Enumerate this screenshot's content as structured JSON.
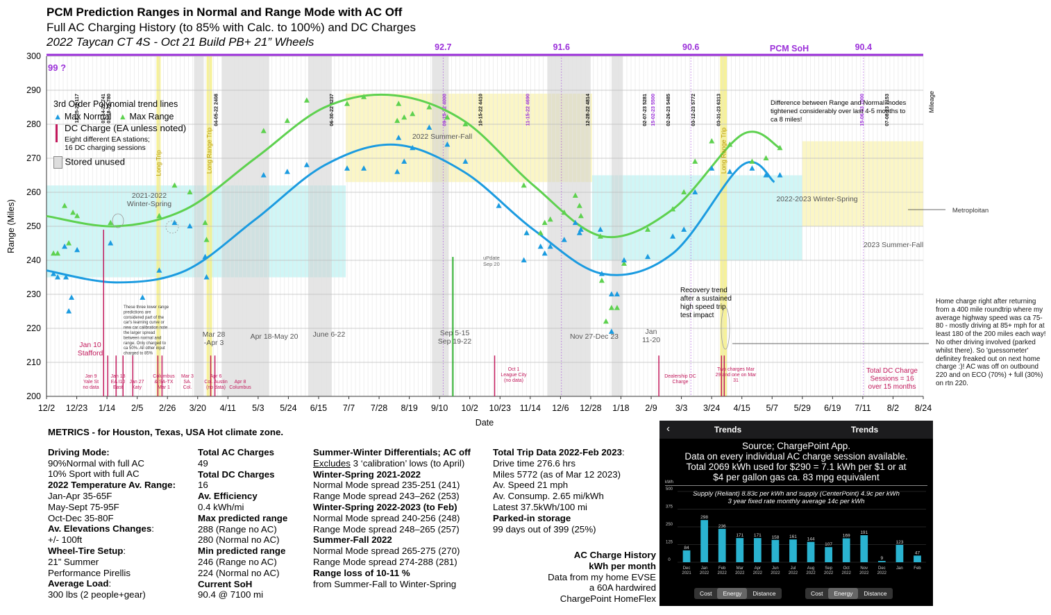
{
  "header": {
    "title": "PCM Prediction Ranges in Normal and Range Mode with AC Off",
    "subtitle": "Full AC Charging History (to 85% with Calc. to 100%) and DC Charges",
    "subtitle2": "2022 Taycan CT 4S - Oct 21 Build PB+ 21” Wheels"
  },
  "chart_data": {
    "type": "scatter",
    "xlabel": "Date",
    "ylabel": "Range (Miles)",
    "ylim": [
      200,
      300
    ],
    "x_ticks": [
      "12/2",
      "12/23",
      "1/14",
      "2/5",
      "2/26",
      "3/20",
      "4/11",
      "5/3",
      "5/24",
      "6/15",
      "7/7",
      "7/28",
      "8/19",
      "9/10",
      "10/2",
      "10/23",
      "11/14",
      "12/6",
      "12/28",
      "1/18",
      "2/9",
      "3/3",
      "3/24",
      "4/15",
      "5/7",
      "5/29",
      "6/19",
      "7/11",
      "8/2",
      "8/24"
    ],
    "y_ticks": [
      200,
      210,
      220,
      230,
      240,
      250,
      260,
      270,
      280,
      290,
      300
    ],
    "legend": {
      "heading": "3rd Order Polynomial trend lines",
      "normal": "Max Normal",
      "range": "Max Range",
      "dc": "DC Charge (EA unless noted)",
      "dc_note1": "Eight different EA stations;",
      "dc_note2": "16 DC charging sessions",
      "stored": "Stored unused"
    },
    "colors": {
      "normal": "#1b9be0",
      "range": "#5ed14f",
      "dc": "#c2185b",
      "soh": "#9b30d9"
    },
    "series": [
      {
        "name": "Max Normal",
        "points": [
          [
            5,
            236
          ],
          [
            8,
            235
          ],
          [
            13,
            244
          ],
          [
            14,
            235
          ],
          [
            16,
            225
          ],
          [
            18,
            229
          ],
          [
            22,
            243
          ],
          [
            46,
            245
          ],
          [
            69,
            229
          ],
          [
            81,
            237
          ],
          [
            92,
            251
          ],
          [
            103,
            250
          ],
          [
            114,
            241
          ],
          [
            115,
            235
          ],
          [
            156,
            265
          ],
          [
            173,
            266
          ],
          [
            187,
            268
          ],
          [
            216,
            267
          ],
          [
            228,
            267
          ],
          [
            252,
            266
          ],
          [
            257,
            269
          ],
          [
            253,
            276
          ],
          [
            263,
            273
          ],
          [
            275,
            279
          ],
          [
            288,
            274
          ],
          [
            301,
            269
          ],
          [
            325,
            256
          ],
          [
            343,
            240
          ],
          [
            345,
            248
          ],
          [
            355,
            244
          ],
          [
            362,
            244
          ],
          [
            358,
            242
          ],
          [
            372,
            246
          ],
          [
            380,
            251
          ],
          [
            383,
            248
          ],
          [
            384,
            249
          ],
          [
            398,
            249
          ],
          [
            399,
            236
          ],
          [
            406,
            230
          ],
          [
            406,
            219
          ],
          [
            410,
            230
          ],
          [
            415,
            240
          ],
          [
            432,
            241
          ],
          [
            450,
            247
          ],
          [
            458,
            249
          ],
          [
            466,
            260
          ],
          [
            478,
            267
          ],
          [
            491,
            266
          ],
          [
            507,
            267
          ],
          [
            517,
            265
          ],
          [
            527,
            265
          ]
        ]
      },
      {
        "name": "Max Range",
        "points": [
          [
            5,
            242
          ],
          [
            8,
            242
          ],
          [
            13,
            256
          ],
          [
            16,
            245
          ],
          [
            19,
            254
          ],
          [
            22,
            253
          ],
          [
            46,
            251
          ],
          [
            81,
            253
          ],
          [
            92,
            262
          ],
          [
            103,
            260
          ],
          [
            114,
            251
          ],
          [
            115,
            246
          ],
          [
            156,
            278
          ],
          [
            173,
            281
          ],
          [
            187,
            287
          ],
          [
            216,
            286
          ],
          [
            228,
            288
          ],
          [
            252,
            281
          ],
          [
            257,
            282
          ],
          [
            253,
            286
          ],
          [
            263,
            283
          ],
          [
            275,
            285
          ],
          [
            288,
            282
          ],
          [
            301,
            280
          ],
          [
            343,
            262
          ],
          [
            345,
            248
          ],
          [
            355,
            248
          ],
          [
            362,
            252
          ],
          [
            358,
            251
          ],
          [
            372,
            254
          ],
          [
            380,
            259
          ],
          [
            383,
            256
          ],
          [
            384,
            253
          ],
          [
            398,
            247
          ],
          [
            399,
            234
          ],
          [
            402,
            222
          ],
          [
            406,
            226
          ],
          [
            410,
            226
          ],
          [
            415,
            239
          ],
          [
            432,
            249
          ],
          [
            450,
            255
          ],
          [
            458,
            260
          ],
          [
            466,
            269
          ],
          [
            478,
            275
          ],
          [
            491,
            274
          ],
          [
            507,
            269
          ],
          [
            517,
            270
          ],
          [
            527,
            273
          ]
        ]
      }
    ],
    "normal_trend": [
      [
        0,
        237
      ],
      [
        50,
        233.5
      ],
      [
        100,
        237
      ],
      [
        150,
        252
      ],
      [
        200,
        268
      ],
      [
        250,
        274
      ],
      [
        300,
        266
      ],
      [
        350,
        249
      ],
      [
        400,
        236
      ],
      [
        450,
        242
      ],
      [
        500,
        268
      ],
      [
        523,
        263
      ]
    ],
    "range_trend": [
      [
        0,
        253
      ],
      [
        50,
        250
      ],
      [
        100,
        255
      ],
      [
        150,
        270
      ],
      [
        200,
        285
      ],
      [
        250,
        288.5
      ],
      [
        300,
        281
      ],
      [
        350,
        262
      ],
      [
        400,
        247
      ],
      [
        450,
        255
      ],
      [
        500,
        277
      ],
      [
        527,
        273
      ]
    ],
    "soh": {
      "label": "PCM SoH",
      "first": "99 ?",
      "values": [
        {
          "day": 285,
          "value": "92.7"
        },
        {
          "day": 370,
          "value": "91.6"
        },
        {
          "day": 463,
          "value": "90.6"
        },
        {
          "day": 587,
          "value": "90.4"
        }
      ]
    },
    "mileage_label": "Mileage",
    "mileage_marks": [
      {
        "day": 23,
        "label": "12-25-22 117"
      },
      {
        "day": 42,
        "label": "01-14-22 741"
      },
      {
        "day": 46,
        "label": "01-18-22 780"
      },
      {
        "day": 123,
        "label": "04-05-22 2408"
      },
      {
        "day": 206,
        "label": "06-30-22 3237"
      },
      {
        "day": 287,
        "label": "09-15-22 4000"
      },
      {
        "day": 313,
        "label": "10-15-22 4410"
      },
      {
        "day": 347,
        "label": "11-15-22 4690"
      },
      {
        "day": 390,
        "label": "12-28-22 4814"
      },
      {
        "day": 431,
        "label": "02-07-23 5281"
      },
      {
        "day": 437,
        "label": "15-02-23 5500"
      },
      {
        "day": 448,
        "label": "02-26-23 5485"
      },
      {
        "day": 466,
        "label": "03-12-23 5772"
      },
      {
        "day": 484,
        "label": "03-31-23 6313"
      },
      {
        "day": 587,
        "label": "15-06-23 7000"
      },
      {
        "day": 605,
        "label": "07-08-23 7153"
      }
    ],
    "region_labels": [
      {
        "text": "2021-2022\nWinter-Spring"
      },
      {
        "text": "2022 Summer-Fall"
      },
      {
        "text": "2022-2023 Winter-Spring"
      },
      {
        "text": "2023 Summer-Fall"
      }
    ],
    "trip_labels": [
      "Long Trip",
      "Long Range Trip",
      "Long Range Trip"
    ],
    "stored_periods": [
      "Mar 28\n-Apr 3",
      "Apr 18-May 20",
      "June 6-22",
      "Sep 5-15\nSep 19-22",
      "Nov 27-Dec 23",
      "Jan\n11-20"
    ],
    "update_label": "uPdate\nSep 20",
    "dc_labels": [
      "Jan 10\nStafford",
      "Jan 9\nYale St\nno data",
      "Jan 13\nEA I10\nEast",
      "Jan 27\nKaty",
      "Columbus\n& SA-TX\nMar 1",
      "Mar 3\nSA.\nCol.",
      "Apr 6\nCol. Austin\n(no data)",
      "Apr 8\nColumbus",
      "Oct 1\nLeague City\n(no data)",
      "Dealership DC\nCharge",
      "Two charges Mar\n29 and one on Mar\n31",
      "Total DC Charge\nSessions = 16\nover 15 months"
    ],
    "annotations": {
      "lowpreds": "These three lower range predictions are considered part of the car's learning curve or new car calibration note the larger spread between normal and range. Only charged to ca 50%. All other input charged to 85%",
      "tightened": "Difference between Range and Normal modes tightened  considerably over last 4-5 months to ca 8 miles!",
      "metro": "Metroploitan",
      "recovery": "Recovery trend\nafter a sustained\nhigh speed trip\ntest impact",
      "homecharge": "Home charge right after returning from a 400 mile roundtrip where my average highway speed was ca 75-80 - mostly driving at 85+ mph for at least 180 of the 200 miles each way!  No other driving involved (parked whilst there).  So 'guessometer' definitey freaked out on next home charge :)!  AC was off on outbound 220 and on ECO (70%) + full (30%) on rtn 220."
    }
  },
  "metrics": {
    "heading": "METRICS - for Houston, Texas, USA Hot climate zone.",
    "col1": [
      {
        "t": "Driving Mode:",
        "b": true
      },
      {
        "t": "90%Normal with full AC"
      },
      {
        "t": "10% Sport with full AC"
      },
      {
        "t": "2022 Temperature Av. Range:",
        "b": true
      },
      {
        "t": "Jan-Apr 35-65F"
      },
      {
        "t": "May-Sept 75-95F"
      },
      {
        "t": "Oct-Dec 35-80F"
      },
      {
        "t": "Av. Elevations Changes",
        "b": true,
        "suffix": ":"
      },
      {
        "t": "+/- 100ft"
      },
      {
        "t": "Wheel-Tire Setup",
        "b": true,
        "suffix": ":"
      },
      {
        "t": "21” Summer"
      },
      {
        "t": "Performance Pirellis"
      },
      {
        "t": "Average Load",
        "b": true,
        "suffix": ":"
      },
      {
        "t": "300 lbs (2 people+gear)"
      }
    ],
    "col2": [
      {
        "t": "Total AC Charges",
        "b": true
      },
      {
        "t": "49"
      },
      {
        "t": "Total DC Charges",
        "b": true
      },
      {
        "t": "16"
      },
      {
        "t": "Av. Efficiency",
        "b": true
      },
      {
        "t": "0.4 kWh/mi"
      },
      {
        "t": "Max predicted range",
        "b": true
      },
      {
        "t": "288 (Range no AC)"
      },
      {
        "t": "280 (Normal no AC)"
      },
      {
        "t": "Min predicted range",
        "b": true
      },
      {
        "t": "246 (Range no AC)"
      },
      {
        "t": "224 (Normal no AC)"
      },
      {
        "t": "Current SoH",
        "b": true
      },
      {
        "t": "90.4 @ 7100 mi"
      }
    ],
    "col3": [
      {
        "t": "Summer-Winter Differentials; AC off",
        "b": true
      },
      {
        "t": "Excludes",
        "u": true,
        "suffix": " 3 ‘calibration’ lows (to April)"
      },
      {
        "t": " "
      },
      {
        "t": "Winter-Spring 2021-2022",
        "b": true
      },
      {
        "t": "Normal Mode spread 235-251 (241)"
      },
      {
        "t": "Range Mode spread 243–262 (253)"
      },
      {
        "t": "Winter-Spring 2022-2023 (to Feb)",
        "b": true
      },
      {
        "t": "Normal Mode spread 240-256 (248)"
      },
      {
        "t": "Range Mode spread 248–265 (257)"
      },
      {
        "t": "Summer-Fall 2022",
        "b": true
      },
      {
        "t": "Normal Mode spread 265-275 (270)"
      },
      {
        "t": "Range Mode spread 274-288 (281)"
      },
      {
        "t": "Range loss of 10-11 %",
        "b": true
      },
      {
        "t": "from Summer-Fall to Winter-Spring"
      }
    ],
    "col4": [
      {
        "t": "Total Trip Data 2022-Feb 2023",
        "b": true,
        "suffix": ":"
      },
      {
        "t": "Drive time 276.6 hrs"
      },
      {
        "t": "Miles 5772 (as of Mar 12 2023)"
      },
      {
        "t": "Av. Speed 21 mph"
      },
      {
        "t": "Av. Consump. 2.65 mi/kWh"
      },
      {
        "t": "Latest 37.5kWh/100 mi"
      },
      {
        "t": " "
      },
      {
        "t": "Parked-in storage",
        "b": true
      },
      {
        "t": "99 days out of 399 (25%)"
      }
    ],
    "ac_history": [
      {
        "t": "AC Charge History",
        "b": true
      },
      {
        "t": "kWh per month",
        "b": true
      },
      {
        "t": "Data from my home EVSE"
      },
      {
        "t": "a 60A hardwired"
      },
      {
        "t": "ChargePoint HomeFlex"
      }
    ]
  },
  "phone": {
    "tab1": "Trends",
    "tab2": "Trends",
    "source": "Source; ChargePoint App.",
    "line2": "Data on every individual AC charge session available.",
    "line3": "Total 2069 kWh used for $290 = 7.1 kWh per $1 or at",
    "line4": "$4 per gallon gas ca. 83 mpg equivalent",
    "supply1": "Supply (Reliant) 8.83c per kWh and supply (CenterPoint) 4.9c per kWh",
    "supply2": "3 year fixed rate monthly average 14c per kWh",
    "unit": "kWh",
    "y_ticks": [
      "500",
      "375",
      "250",
      "125",
      "0"
    ],
    "bars": [
      {
        "label": "Dec\n2021",
        "value": 84
      },
      {
        "label": "Jan\n2022",
        "value": 298
      },
      {
        "label": "Feb\n2022",
        "value": 236
      },
      {
        "label": "Mar\n2022",
        "value": 171
      },
      {
        "label": "Apr\n2022",
        "value": 171
      },
      {
        "label": "Jun\n2022",
        "value": 158
      },
      {
        "label": "Jul\n2022",
        "value": 161
      },
      {
        "label": "Aug\n2022",
        "value": 144
      },
      {
        "label": "Sep\n2022",
        "value": 107
      },
      {
        "label": "Oct\n2022",
        "value": 169
      },
      {
        "label": "Nov\n2022",
        "value": 191
      },
      {
        "label": "Dec\n2022",
        "value": 9
      },
      {
        "label": "Jan",
        "value": 123
      },
      {
        "label": "Feb",
        "value": 47
      }
    ],
    "seg": [
      "Cost",
      "Energy",
      "Distance"
    ]
  }
}
